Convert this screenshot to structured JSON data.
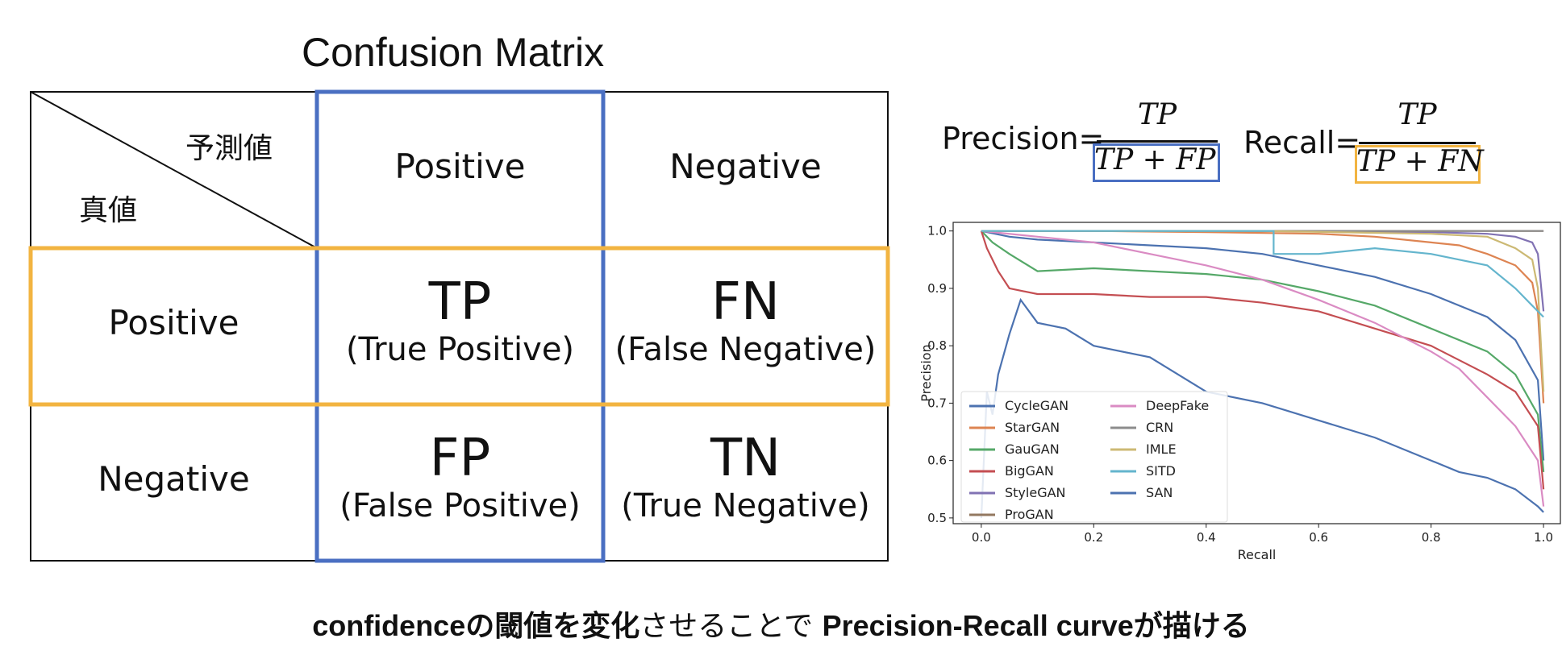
{
  "matrix": {
    "title": "Confusion Matrix",
    "corner_predicted": "予測値",
    "corner_actual": "真値",
    "col_headers": [
      "Positive",
      "Negative"
    ],
    "row_headers": [
      "Positive",
      "Negative"
    ],
    "cells": [
      [
        {
          "abbr": "TP",
          "full": "(True Positive)"
        },
        {
          "abbr": "FN",
          "full": "(False Negative)"
        }
      ],
      [
        {
          "abbr": "FP",
          "full": "(False Positive)"
        },
        {
          "abbr": "TN",
          "full": "(True Negative)"
        }
      ]
    ],
    "colors": {
      "positive_column_box": "#4a6fc2",
      "positive_row_box": "#f2b441"
    }
  },
  "formulas": {
    "precision_label": "Precision=",
    "precision_num": "TP",
    "precision_den": "TP + FP",
    "recall_label": "Recall=",
    "recall_num": "TP",
    "recall_den": "TP + FN"
  },
  "caption": {
    "part1": "confidenceの閾値を変化",
    "part2": "させることで",
    "part3": "Precision-Recall curveが描ける"
  },
  "chart_data": {
    "type": "line",
    "xlabel": "Recall",
    "ylabel": "Precision",
    "xlim": [
      -0.05,
      1.03
    ],
    "ylim": [
      0.49,
      1.015
    ],
    "xticks": [
      "0.0",
      "0.2",
      "0.4",
      "0.6",
      "0.8",
      "1.0"
    ],
    "yticks": [
      "0.5",
      "0.6",
      "0.7",
      "0.8",
      "0.9",
      "1.0"
    ],
    "grid": false,
    "legend": "lower-left",
    "series": [
      {
        "name": "CycleGAN",
        "color": "#4c72b0",
        "x": [
          0.0,
          0.05,
          0.1,
          0.2,
          0.3,
          0.4,
          0.5,
          0.6,
          0.7,
          0.8,
          0.9,
          0.95,
          0.99,
          1.0
        ],
        "y": [
          1.0,
          0.99,
          0.985,
          0.98,
          0.975,
          0.97,
          0.96,
          0.94,
          0.92,
          0.89,
          0.85,
          0.81,
          0.74,
          0.6
        ]
      },
      {
        "name": "StarGAN",
        "color": "#dd8452",
        "x": [
          0.0,
          0.2,
          0.4,
          0.6,
          0.7,
          0.8,
          0.85,
          0.9,
          0.95,
          0.98,
          0.99,
          1.0
        ],
        "y": [
          1.0,
          1.0,
          0.998,
          0.995,
          0.99,
          0.98,
          0.975,
          0.96,
          0.94,
          0.91,
          0.86,
          0.7
        ]
      },
      {
        "name": "GauGAN",
        "color": "#55a868",
        "x": [
          0.0,
          0.02,
          0.05,
          0.1,
          0.2,
          0.3,
          0.4,
          0.5,
          0.6,
          0.7,
          0.8,
          0.9,
          0.95,
          0.99,
          1.0
        ],
        "y": [
          1.0,
          0.98,
          0.96,
          0.93,
          0.935,
          0.93,
          0.925,
          0.915,
          0.895,
          0.87,
          0.83,
          0.79,
          0.75,
          0.68,
          0.58
        ]
      },
      {
        "name": "BigGAN",
        "color": "#c44e52",
        "x": [
          0.0,
          0.01,
          0.03,
          0.05,
          0.1,
          0.2,
          0.3,
          0.4,
          0.5,
          0.6,
          0.7,
          0.8,
          0.9,
          0.95,
          0.99,
          1.0
        ],
        "y": [
          1.0,
          0.97,
          0.93,
          0.9,
          0.89,
          0.89,
          0.885,
          0.885,
          0.875,
          0.86,
          0.83,
          0.8,
          0.75,
          0.72,
          0.66,
          0.55
        ]
      },
      {
        "name": "StyleGAN",
        "color": "#8172b3",
        "x": [
          0.0,
          0.5,
          0.8,
          0.9,
          0.95,
          0.98,
          0.99,
          1.0
        ],
        "y": [
          1.0,
          1.0,
          0.998,
          0.995,
          0.99,
          0.98,
          0.96,
          0.86
        ]
      },
      {
        "name": "ProGAN",
        "color": "#937860",
        "x": [
          0.0,
          0.5,
          0.9,
          1.0
        ],
        "y": [
          1.0,
          1.0,
          1.0,
          1.0
        ]
      },
      {
        "name": "DeepFake",
        "color": "#da8bc3",
        "x": [
          0.0,
          0.1,
          0.2,
          0.3,
          0.4,
          0.5,
          0.6,
          0.7,
          0.8,
          0.85,
          0.9,
          0.95,
          0.99,
          1.0
        ],
        "y": [
          1.0,
          0.99,
          0.98,
          0.96,
          0.94,
          0.915,
          0.88,
          0.84,
          0.79,
          0.76,
          0.71,
          0.66,
          0.6,
          0.52
        ]
      },
      {
        "name": "CRN",
        "color": "#8c8c8c",
        "x": [
          0.0,
          0.5,
          1.0
        ],
        "y": [
          1.0,
          1.0,
          1.0
        ]
      },
      {
        "name": "IMLE",
        "color": "#ccb974",
        "x": [
          0.0,
          0.5,
          0.8,
          0.9,
          0.95,
          0.98,
          0.99,
          1.0
        ],
        "y": [
          1.0,
          1.0,
          0.995,
          0.99,
          0.97,
          0.95,
          0.9,
          0.72
        ]
      },
      {
        "name": "SITD",
        "color": "#64b5cd",
        "x": [
          0.0,
          0.52,
          0.52,
          0.6,
          0.7,
          0.8,
          0.85,
          0.9,
          0.95,
          0.98,
          1.0
        ],
        "y": [
          1.0,
          1.0,
          0.96,
          0.96,
          0.97,
          0.96,
          0.95,
          0.94,
          0.9,
          0.87,
          0.85
        ]
      },
      {
        "name": "SAN",
        "color": "#4c72b0",
        "x": [
          0.0,
          0.01,
          0.02,
          0.03,
          0.05,
          0.07,
          0.1,
          0.15,
          0.2,
          0.3,
          0.35,
          0.4,
          0.5,
          0.6,
          0.7,
          0.8,
          0.85,
          0.9,
          0.95,
          0.99,
          1.0
        ],
        "y": [
          0.5,
          0.72,
          0.68,
          0.75,
          0.82,
          0.88,
          0.84,
          0.83,
          0.8,
          0.78,
          0.75,
          0.72,
          0.7,
          0.67,
          0.64,
          0.6,
          0.58,
          0.57,
          0.55,
          0.52,
          0.51
        ]
      }
    ]
  }
}
